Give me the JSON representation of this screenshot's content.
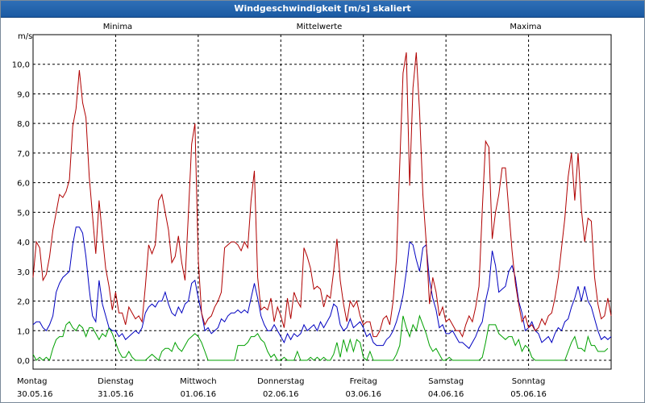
{
  "window": {
    "title": "Windgeschwindigkeit [m/s] skaliert"
  },
  "chart_data": {
    "type": "line",
    "title": "Windgeschwindigkeit [m/s] skaliert",
    "ylabel": "m/s",
    "ylim": [
      -0.3,
      11
    ],
    "xlim": [
      0,
      175
    ],
    "yticks": [
      "0,0",
      "1,0",
      "2,0",
      "3,0",
      "4,0",
      "5,0",
      "6,0",
      "7,0",
      "8,0",
      "9,0",
      "10,0"
    ],
    "xtick_labels": [
      {
        "day": "Montag",
        "date": "30.05.16"
      },
      {
        "day": "Dienstag",
        "date": "31.05.16"
      },
      {
        "day": "Mittwoch",
        "date": "01.06.16"
      },
      {
        "day": "Donnerstag",
        "date": "02.06.16"
      },
      {
        "day": "Freitag",
        "date": "03.06.16"
      },
      {
        "day": "Samstag",
        "date": "04.06.16"
      },
      {
        "day": "Sonntag",
        "date": "05.06.16"
      }
    ],
    "grid": true,
    "legend_position": "top",
    "colors": {
      "minima": "#00a000",
      "mittelwerte": "#0000c0",
      "maxima": "#b00000",
      "grid": "#000000"
    },
    "series": [
      {
        "name": "Minima",
        "values": [
          0.2,
          0,
          0.1,
          0,
          0.1,
          0,
          0.4,
          0.7,
          0.8,
          0.8,
          1.2,
          1.3,
          1.1,
          1.0,
          1.2,
          1.1,
          0.8,
          1.1,
          1.1,
          0.9,
          0.7,
          0.9,
          0.8,
          1.1,
          0.9,
          0.6,
          0.3,
          0.1,
          0.1,
          0.3,
          0.1,
          0,
          0,
          0,
          0,
          0.1,
          0.2,
          0.1,
          0,
          0.3,
          0.4,
          0.4,
          0.3,
          0.6,
          0.4,
          0.3,
          0.5,
          0.7,
          0.8,
          0.9,
          0.8,
          0.6,
          0.3,
          0,
          0,
          0,
          0,
          0,
          0,
          0,
          0,
          0,
          0.5,
          0.5,
          0.5,
          0.6,
          0.8,
          0.8,
          0.9,
          0.7,
          0.6,
          0.3,
          0.1,
          0.2,
          0,
          0,
          0.1,
          0,
          0,
          0,
          0.3,
          0,
          0,
          0,
          0.1,
          0,
          0.1,
          0,
          0.1,
          0,
          0,
          0.2,
          0.6,
          0.1,
          0.7,
          0.3,
          0.7,
          0.3,
          0.7,
          0.6,
          0.1,
          0,
          0.3,
          0,
          0,
          0,
          0,
          0,
          0,
          0,
          0.2,
          0.5,
          1.5,
          1.1,
          0.8,
          1.2,
          1.0,
          1.5,
          1.2,
          0.9,
          0.5,
          0.3,
          0.4,
          0.2,
          0,
          0,
          0.1,
          0,
          0,
          0,
          0,
          0,
          0,
          0,
          0,
          0,
          0.1,
          0.6,
          1.2,
          1.2,
          1.2,
          0.9,
          0.8,
          0.7,
          0.8,
          0.8,
          0.5,
          0.7,
          0.3,
          0.5,
          0.4,
          0.1,
          0,
          0,
          0,
          0,
          0,
          0,
          0,
          0,
          0,
          0,
          0.3,
          0.6,
          0.8,
          0.4,
          0.4,
          0.3,
          0.8,
          0.5,
          0.5,
          0.3,
          0.3,
          0.3,
          0.4
        ]
      },
      {
        "name": "Mittelwerte",
        "values": [
          1.2,
          1.3,
          1.3,
          1.1,
          1.0,
          1.2,
          1.5,
          2.3,
          2.6,
          2.8,
          2.9,
          3.0,
          3.9,
          4.5,
          4.5,
          4.3,
          3.5,
          2.4,
          1.5,
          1.3,
          2.7,
          1.9,
          1.5,
          1.1,
          1.0,
          1.0,
          0.8,
          0.9,
          0.7,
          0.8,
          0.9,
          1.0,
          0.9,
          1.1,
          1.6,
          1.8,
          1.9,
          1.8,
          2.0,
          2.0,
          2.3,
          1.9,
          1.6,
          1.5,
          1.8,
          1.6,
          1.9,
          2.0,
          2.6,
          2.7,
          2.1,
          1.6,
          1.0,
          1.1,
          0.9,
          1.0,
          1.1,
          1.4,
          1.3,
          1.5,
          1.6,
          1.6,
          1.7,
          1.6,
          1.7,
          1.6,
          2.1,
          2.6,
          2.1,
          1.5,
          1.2,
          1.0,
          1.0,
          1.2,
          1.0,
          0.8,
          0.6,
          0.9,
          0.7,
          0.9,
          0.8,
          0.9,
          1.2,
          1.0,
          1.1,
          1.2,
          1.0,
          1.3,
          1.1,
          1.3,
          1.5,
          1.9,
          1.8,
          1.2,
          1.0,
          1.1,
          1.4,
          1.1,
          1.2,
          1.3,
          1.1,
          0.8,
          0.9,
          0.6,
          0.5,
          0.5,
          0.5,
          0.7,
          0.8,
          1.0,
          1.3,
          1.7,
          2.2,
          3.0,
          4.0,
          3.9,
          3.4,
          3.0,
          3.8,
          3.9,
          2.7,
          2.1,
          1.7,
          1.1,
          1.2,
          0.9,
          0.9,
          1.0,
          0.8,
          0.6,
          0.6,
          0.5,
          0.4,
          0.6,
          0.8,
          1.1,
          1.3,
          2.0,
          2.5,
          3.7,
          3.2,
          2.3,
          2.4,
          2.5,
          3.0,
          3.2,
          2.8,
          2.0,
          1.6,
          1.0,
          1.1,
          1.3,
          1.0,
          0.9,
          0.6,
          0.7,
          0.8,
          0.6,
          0.9,
          1.1,
          1.0,
          1.3,
          1.4,
          1.8,
          2.1,
          2.5,
          2.0,
          2.5,
          2.0,
          1.8,
          1.4,
          1.0,
          0.7,
          0.8,
          0.7,
          0.8
        ]
      },
      {
        "name": "Maxima",
        "values": [
          2.8,
          4.0,
          3.8,
          2.7,
          2.9,
          3.5,
          4.4,
          5.0,
          5.6,
          5.5,
          5.7,
          6.1,
          7.9,
          8.5,
          9.8,
          8.7,
          8.2,
          6.2,
          4.9,
          3.6,
          5.4,
          4.2,
          3.1,
          2.5,
          1.7,
          2.3,
          1.6,
          1.6,
          1.2,
          1.8,
          1.6,
          1.4,
          1.5,
          1.3,
          2.5,
          3.9,
          3.6,
          3.9,
          5.4,
          5.6,
          5.0,
          4.4,
          3.3,
          3.5,
          4.2,
          3.3,
          2.7,
          4.9,
          7.3,
          8.0,
          3.4,
          1.6,
          1.2,
          1.4,
          1.5,
          1.8,
          2.0,
          2.3,
          3.8,
          3.9,
          4.0,
          4.0,
          3.9,
          3.7,
          4.0,
          3.8,
          5.4,
          6.4,
          2.8,
          1.7,
          1.8,
          1.7,
          2.1,
          1.3,
          1.8,
          1.5,
          1.1,
          2.1,
          1.4,
          2.3,
          2.0,
          1.8,
          3.8,
          3.5,
          3.1,
          2.4,
          2.5,
          2.4,
          1.8,
          2.2,
          2.1,
          3.0,
          4.1,
          2.7,
          1.9,
          1.3,
          2.0,
          1.8,
          2.0,
          1.5,
          1.2,
          1.3,
          1.3,
          0.8,
          0.8,
          1.0,
          1.4,
          1.5,
          1.2,
          2.0,
          3.4,
          6.6,
          9.7,
          10.4,
          5.9,
          9.2,
          10.4,
          8.4,
          5.6,
          4.0,
          1.9,
          2.8,
          2.3,
          1.5,
          1.8,
          1.3,
          1.4,
          1.2,
          1.0,
          1.0,
          0.8,
          1.2,
          1.5,
          1.3,
          1.8,
          2.5,
          5.1,
          7.4,
          7.2,
          4.1,
          5.0,
          5.6,
          6.5,
          6.5,
          5.1,
          3.7,
          2.6,
          1.9,
          1.3,
          1.5,
          1.1,
          1.2,
          1.0,
          1.1,
          1.4,
          1.2,
          1.5,
          1.6,
          2.1,
          2.8,
          3.8,
          4.8,
          6.2,
          7.0,
          5.4,
          7.0,
          5.1,
          4.0,
          4.8,
          4.7,
          2.8,
          1.9,
          1.4,
          1.5,
          2.1,
          1.5
        ]
      }
    ]
  }
}
